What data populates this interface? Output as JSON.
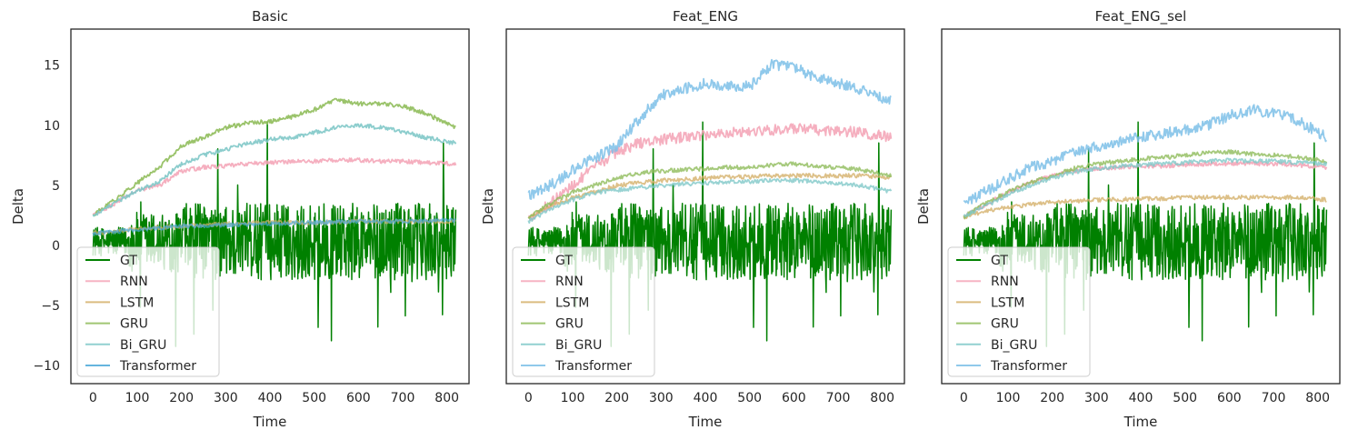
{
  "chart_data": [
    {
      "type": "line",
      "title": "Basic",
      "xlabel": "Time",
      "ylabel": "Delta",
      "xlim": [
        -50,
        850
      ],
      "ylim": [
        -11.5,
        18
      ],
      "xticks": [
        0,
        100,
        200,
        300,
        400,
        500,
        600,
        700,
        800
      ],
      "yticks": [
        -10,
        -5,
        0,
        5,
        10,
        15
      ],
      "show_ytick_labels": true,
      "legend": "lower-left",
      "series": [
        {
          "name": "GT",
          "color": "#008000",
          "alpha": 1.0
        },
        {
          "name": "RNN",
          "color": "#f4a6b8",
          "alpha": 0.9,
          "x": [
            0,
            50,
            100,
            150,
            200,
            250,
            300,
            350,
            400,
            450,
            500,
            550,
            600,
            650,
            700,
            750,
            820
          ],
          "values": [
            2.5,
            3.5,
            4.6,
            5.0,
            6.2,
            6.5,
            6.6,
            6.8,
            6.9,
            7.0,
            7.0,
            7.1,
            7.1,
            7.0,
            7.0,
            6.9,
            6.8
          ]
        },
        {
          "name": "LSTM",
          "color": "#d4b06a",
          "alpha": 0.7,
          "x": [
            0,
            100,
            200,
            300,
            400,
            500,
            600,
            700,
            820
          ],
          "values": [
            1.0,
            1.4,
            1.6,
            1.8,
            1.9,
            1.9,
            2.0,
            2.0,
            2.0
          ]
        },
        {
          "name": "GRU",
          "color": "#8fbc5a",
          "alpha": 0.9,
          "x": [
            0,
            50,
            100,
            150,
            200,
            250,
            300,
            350,
            400,
            450,
            500,
            550,
            600,
            650,
            700,
            750,
            820
          ],
          "values": [
            2.5,
            3.8,
            5.2,
            6.5,
            8.3,
            9.0,
            9.8,
            10.2,
            10.3,
            10.7,
            11.3,
            12.1,
            11.8,
            11.8,
            11.6,
            11.0,
            9.8
          ]
        },
        {
          "name": "Bi_GRU",
          "color": "#7fc8c8",
          "alpha": 0.9,
          "x": [
            0,
            50,
            100,
            150,
            200,
            250,
            300,
            350,
            400,
            450,
            500,
            550,
            600,
            650,
            700,
            750,
            820
          ],
          "values": [
            2.5,
            3.5,
            4.6,
            5.3,
            6.8,
            7.5,
            8.0,
            8.5,
            8.8,
            9.0,
            9.4,
            9.8,
            10.0,
            9.8,
            9.5,
            9.0,
            8.5
          ]
        },
        {
          "name": "Transformer",
          "color": "#4aa8d8",
          "alpha": 0.7,
          "x": [
            0,
            100,
            200,
            300,
            400,
            500,
            600,
            700,
            820
          ],
          "values": [
            1.0,
            1.3,
            1.6,
            1.7,
            1.8,
            1.9,
            2.0,
            2.0,
            2.1
          ]
        }
      ]
    },
    {
      "type": "line",
      "title": "Feat_ENG",
      "xlabel": "Time",
      "ylabel": "Delta",
      "xlim": [
        -50,
        850
      ],
      "ylim": [
        -11.5,
        18
      ],
      "xticks": [
        0,
        100,
        200,
        300,
        400,
        500,
        600,
        700,
        800
      ],
      "yticks": [
        -10,
        -5,
        0,
        5,
        10,
        15
      ],
      "show_ytick_labels": false,
      "legend": "lower-left",
      "series": [
        {
          "name": "GT",
          "color": "#008000",
          "alpha": 1.0
        },
        {
          "name": "RNN",
          "color": "#f4a6b8",
          "alpha": 0.9,
          "x": [
            0,
            50,
            100,
            150,
            200,
            250,
            300,
            350,
            400,
            450,
            500,
            550,
            600,
            650,
            700,
            750,
            820
          ],
          "values": [
            2.3,
            3.5,
            5.0,
            6.5,
            7.8,
            8.5,
            8.8,
            9.0,
            9.2,
            9.4,
            9.5,
            9.6,
            9.7,
            9.6,
            9.5,
            9.4,
            9.0
          ]
        },
        {
          "name": "LSTM",
          "color": "#d4b06a",
          "alpha": 0.8,
          "x": [
            0,
            50,
            100,
            150,
            200,
            250,
            300,
            350,
            400,
            450,
            500,
            550,
            600,
            650,
            700,
            750,
            820
          ],
          "values": [
            2.3,
            3.3,
            4.0,
            4.5,
            5.0,
            5.2,
            5.4,
            5.5,
            5.6,
            5.7,
            5.7,
            5.8,
            5.8,
            5.8,
            5.8,
            5.8,
            5.6
          ]
        },
        {
          "name": "GRU",
          "color": "#8fbc5a",
          "alpha": 0.8,
          "x": [
            0,
            50,
            100,
            150,
            200,
            250,
            300,
            350,
            400,
            450,
            500,
            550,
            600,
            650,
            700,
            750,
            820
          ],
          "values": [
            2.3,
            3.5,
            4.4,
            5.0,
            5.6,
            6.0,
            6.2,
            6.3,
            6.4,
            6.5,
            6.5,
            6.7,
            6.8,
            6.6,
            6.5,
            6.3,
            5.8
          ]
        },
        {
          "name": "Bi_GRU",
          "color": "#7fc8c8",
          "alpha": 0.8,
          "x": [
            0,
            50,
            100,
            150,
            200,
            250,
            300,
            350,
            400,
            450,
            500,
            550,
            600,
            650,
            700,
            750,
            820
          ],
          "values": [
            2.0,
            3.0,
            3.8,
            4.4,
            4.6,
            4.8,
            5.0,
            5.1,
            5.2,
            5.3,
            5.3,
            5.4,
            5.4,
            5.3,
            5.2,
            5.0,
            4.5
          ]
        },
        {
          "name": "Transformer",
          "color": "#7cbfe8",
          "alpha": 0.85,
          "x": [
            0,
            50,
            100,
            150,
            200,
            250,
            300,
            350,
            400,
            450,
            500,
            550,
            600,
            650,
            700,
            750,
            820
          ],
          "values": [
            4.2,
            5.0,
            6.3,
            7.3,
            8.3,
            10.5,
            12.5,
            13.0,
            13.5,
            13.3,
            13.2,
            15.0,
            14.8,
            14.0,
            13.5,
            13.0,
            12.0
          ]
        }
      ]
    },
    {
      "type": "line",
      "title": "Feat_ENG_sel",
      "xlabel": "Time",
      "ylabel": "Delta",
      "xlim": [
        -50,
        850
      ],
      "ylim": [
        -11.5,
        18
      ],
      "xticks": [
        0,
        100,
        200,
        300,
        400,
        500,
        600,
        700,
        800
      ],
      "yticks": [
        -10,
        -5,
        0,
        5,
        10,
        15
      ],
      "show_ytick_labels": false,
      "legend": "lower-left",
      "series": [
        {
          "name": "GT",
          "color": "#008000",
          "alpha": 1.0
        },
        {
          "name": "RNN",
          "color": "#f4a6b8",
          "alpha": 0.9,
          "x": [
            0,
            50,
            100,
            150,
            200,
            250,
            300,
            350,
            400,
            450,
            500,
            550,
            600,
            650,
            700,
            750,
            820
          ],
          "values": [
            2.4,
            3.4,
            4.4,
            5.2,
            5.8,
            6.2,
            6.4,
            6.5,
            6.6,
            6.6,
            6.7,
            6.8,
            6.8,
            6.8,
            6.8,
            6.7,
            6.5
          ]
        },
        {
          "name": "LSTM",
          "color": "#d4b06a",
          "alpha": 0.8,
          "x": [
            0,
            50,
            100,
            150,
            200,
            250,
            300,
            350,
            400,
            450,
            500,
            550,
            600,
            650,
            700,
            750,
            820
          ],
          "values": [
            2.3,
            2.9,
            3.2,
            3.4,
            3.6,
            3.7,
            3.8,
            3.8,
            3.9,
            3.9,
            4.0,
            4.0,
            4.0,
            4.0,
            4.0,
            4.0,
            3.8
          ]
        },
        {
          "name": "GRU",
          "color": "#8fbc5a",
          "alpha": 0.8,
          "x": [
            0,
            50,
            100,
            150,
            200,
            250,
            300,
            350,
            400,
            450,
            500,
            550,
            600,
            650,
            700,
            750,
            820
          ],
          "values": [
            2.4,
            3.5,
            4.5,
            5.2,
            5.8,
            6.4,
            6.8,
            7.0,
            7.2,
            7.3,
            7.5,
            7.7,
            7.8,
            7.6,
            7.5,
            7.4,
            7.0
          ]
        },
        {
          "name": "Bi_GRU",
          "color": "#7fc8c8",
          "alpha": 0.8,
          "x": [
            0,
            50,
            100,
            150,
            200,
            250,
            300,
            350,
            400,
            450,
            500,
            550,
            600,
            650,
            700,
            750,
            820
          ],
          "values": [
            2.4,
            3.3,
            4.2,
            5.0,
            5.6,
            6.1,
            6.4,
            6.6,
            6.7,
            6.8,
            6.9,
            7.0,
            7.1,
            7.0,
            7.0,
            6.9,
            6.8
          ]
        },
        {
          "name": "Transformer",
          "color": "#7cbfe8",
          "alpha": 0.85,
          "x": [
            0,
            50,
            100,
            150,
            200,
            250,
            300,
            350,
            400,
            450,
            500,
            550,
            600,
            650,
            700,
            750,
            820
          ],
          "values": [
            3.5,
            4.5,
            5.5,
            6.5,
            7.0,
            7.8,
            8.2,
            8.6,
            9.0,
            9.3,
            9.6,
            10.0,
            10.8,
            11.3,
            11.0,
            10.5,
            9.0
          ]
        }
      ]
    }
  ]
}
